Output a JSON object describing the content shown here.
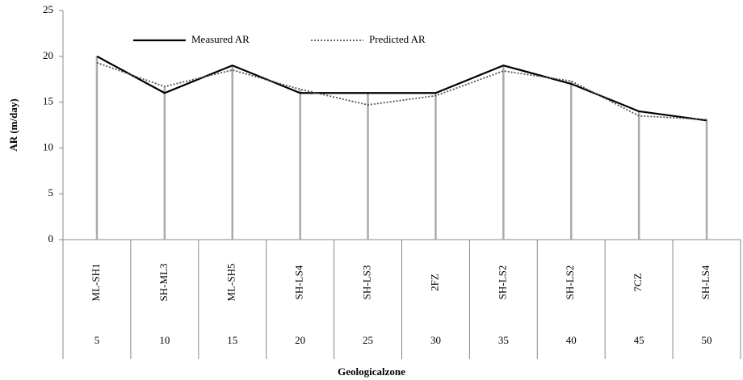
{
  "chart_data": {
    "type": "line",
    "categories": [
      "ML-SH1",
      "SH-ML3",
      "ML-SH5",
      "SH-LS4",
      "SH-LS3",
      "2FZ",
      "SH-LS2",
      "SH-LS2",
      "7CZ",
      "SH-LS4"
    ],
    "category_numbers": [
      5,
      10,
      15,
      20,
      25,
      30,
      35,
      40,
      45,
      50
    ],
    "series": [
      {
        "name": "Measured AR",
        "color": "#000000",
        "style": "solid",
        "values": [
          20,
          16,
          19,
          16,
          16,
          16,
          19,
          17,
          14,
          13
        ]
      },
      {
        "name": "Predicted AR",
        "color": "#555555",
        "style": "dotted",
        "values": [
          19.3,
          16.7,
          18.5,
          16.4,
          14.7,
          15.7,
          18.4,
          17.3,
          13.5,
          13.1
        ]
      }
    ],
    "ylim": [
      0,
      25
    ],
    "yticks": [
      0,
      5,
      10,
      15,
      20,
      25
    ],
    "ylabel": "AR (m/day)",
    "xlabel": "Geologicalzone",
    "legend": "top",
    "drop_lines": true
  }
}
